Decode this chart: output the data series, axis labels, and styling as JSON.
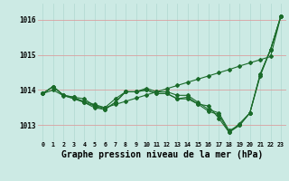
{
  "bg_color": "#cceae4",
  "grid_color_h": "#daa0a0",
  "grid_color_v": "#b0d8d0",
  "line_color": "#1a6b2a",
  "marker": "D",
  "markersize": 2,
  "linewidth": 0.8,
  "xlabel": "Graphe pression niveau de la mer (hPa)",
  "xlabel_fontsize": 7,
  "ytick_labels": [
    1013,
    1014,
    1015,
    1016
  ],
  "ylim": [
    1012.55,
    1016.45
  ],
  "xlim": [
    -0.5,
    23.5
  ],
  "series": [
    [
      1013.9,
      1014.1,
      1013.85,
      1013.8,
      1013.75,
      1013.55,
      1013.5,
      1013.75,
      1013.95,
      1013.95,
      1014.05,
      1013.95,
      1013.95,
      1013.85,
      1013.85,
      1013.65,
      1013.45,
      1013.35,
      1012.85,
      1013.0,
      1013.35,
      1014.4,
      1015.15,
      1016.1
    ],
    [
      1013.9,
      1014.1,
      1013.85,
      1013.75,
      1013.65,
      1013.5,
      1013.45,
      1013.65,
      1013.95,
      1013.95,
      1014.0,
      1013.9,
      1013.9,
      1013.75,
      1013.8,
      1013.6,
      1013.4,
      1013.3,
      1012.8,
      1013.0,
      1013.35,
      1014.45,
      1015.15,
      1016.1
    ],
    [
      1013.9,
      1014.1,
      1013.85,
      1013.8,
      1013.65,
      1013.55,
      1013.45,
      1013.65,
      1013.95,
      1013.95,
      1014.0,
      1013.9,
      1013.9,
      1013.75,
      1013.75,
      1013.6,
      1013.55,
      1013.2,
      1012.8,
      1013.05,
      1013.35,
      1014.45,
      1015.15,
      1016.1
    ],
    [
      1013.9,
      1014.0,
      1013.84,
      1013.77,
      1013.68,
      1013.59,
      1013.5,
      1013.59,
      1013.68,
      1013.77,
      1013.86,
      1013.95,
      1014.04,
      1014.13,
      1014.22,
      1014.31,
      1014.4,
      1014.49,
      1014.58,
      1014.68,
      1014.77,
      1014.86,
      1014.95,
      1016.1
    ]
  ]
}
